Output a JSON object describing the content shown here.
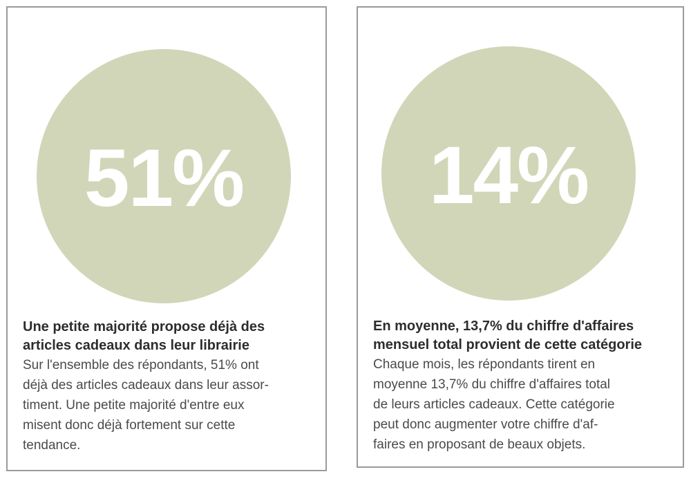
{
  "cards": [
    {
      "stat": "51%",
      "headline_1": "Une petite majorité propose déjà des",
      "headline_2": "articles cadeaux dans leur librairie",
      "body_1": "Sur l'ensemble des répondants, 51% ont",
      "body_2": "déjà des articles cadeaux dans leur assor-",
      "body_3": "timent. Une petite majorité d'entre eux",
      "body_4": "misent donc déjà fortement sur cette",
      "body_5": "tendance."
    },
    {
      "stat": "14%",
      "headline_1": "En moyenne, 13,7% du chiffre d'affaires",
      "headline_2": "mensuel total provient de cette catégorie",
      "body_1": "Chaque mois, les répondants tirent en",
      "body_2": "moyenne 13,7% du chiffre d'affaires total",
      "body_3": "de leurs articles cadeaux. Cette catégorie",
      "body_4": "peut donc augmenter votre chiffre d'af-",
      "body_5": "faires en proposant de beaux objets."
    }
  ],
  "colors": {
    "circle": "#d2d6b8",
    "border": "#9a9a9a",
    "stat_text": "#ffffff"
  }
}
